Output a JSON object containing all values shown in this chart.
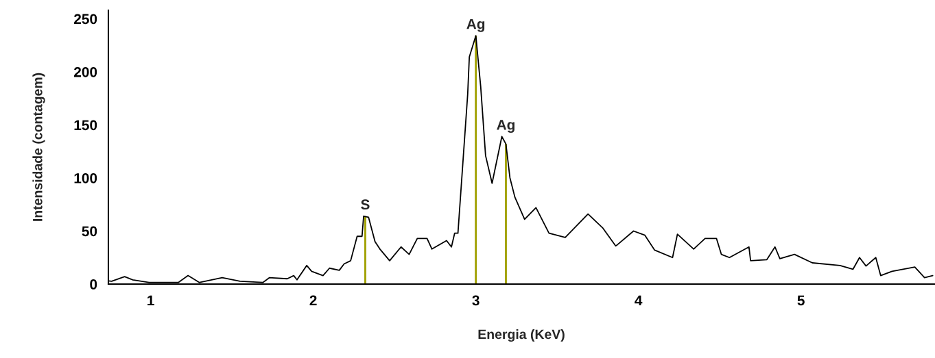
{
  "chart_data": {
    "type": "line",
    "xlabel": "Energia (KeV)",
    "ylabel": "Intensidade (contagem)",
    "xlim": [
      0.74,
      5.82
    ],
    "xticks": [
      1,
      2,
      3,
      4,
      5
    ],
    "ylim": [
      0,
      258
    ],
    "yticks": [
      0,
      50,
      100,
      150,
      200,
      250
    ],
    "grid": false,
    "series": [
      {
        "color": "#000000",
        "x": [
          0.74,
          0.76,
          0.84,
          0.89,
          0.99,
          1.17,
          1.23,
          1.3,
          1.44,
          1.55,
          1.69,
          1.73,
          1.84,
          1.88,
          1.9,
          1.96,
          1.99,
          2.06,
          2.1,
          2.16,
          2.19,
          2.23,
          2.27,
          2.3,
          2.31,
          2.34,
          2.38,
          2.41,
          2.47,
          2.54,
          2.59,
          2.64,
          2.7,
          2.73,
          2.82,
          2.85,
          2.87,
          2.89,
          2.95,
          2.96,
          3.0,
          3.03,
          3.06,
          3.1,
          3.16,
          3.185,
          3.21,
          3.24,
          3.3,
          3.37,
          3.45,
          3.55,
          3.69,
          3.78,
          3.86,
          3.87,
          3.97,
          4.04,
          4.1,
          4.21,
          4.24,
          4.34,
          4.41,
          4.48,
          4.51,
          4.56,
          4.68,
          4.69,
          4.79,
          4.84,
          4.87,
          4.96,
          5.07,
          5.24,
          5.32,
          5.36,
          5.4,
          5.46,
          5.49,
          5.56,
          5.7,
          5.76,
          5.81
        ],
        "values": [
          3,
          2.6,
          7,
          4,
          1.5,
          1.5,
          8,
          1.5,
          6,
          2.6,
          1.5,
          6,
          5,
          8,
          4,
          17.5,
          12,
          8,
          15,
          13,
          19,
          22,
          45,
          45,
          64,
          63,
          40,
          33,
          22,
          35,
          28,
          43,
          43,
          33,
          41,
          35,
          48,
          48,
          179,
          214,
          234,
          186,
          121,
          95,
          139,
          132,
          100,
          82,
          61,
          72,
          48,
          44,
          66,
          53,
          36,
          37,
          50,
          46,
          32,
          25,
          47,
          33,
          43,
          43,
          28,
          25,
          35,
          22,
          23,
          35,
          24,
          28,
          20,
          17.5,
          14,
          25,
          17,
          25,
          8,
          12,
          16,
          6,
          8
        ]
      },
      {
        "type": "bar",
        "color": "#a0a000",
        "x": [
          2.32,
          3.0,
          3.185
        ],
        "values": [
          64,
          234,
          132
        ]
      }
    ],
    "annotations": [
      {
        "text": "S",
        "x": 2.32,
        "y": 64
      },
      {
        "text": "Ag",
        "x": 3.0,
        "y": 234
      },
      {
        "text": "Ag",
        "x": 3.185,
        "y": 139
      }
    ]
  }
}
